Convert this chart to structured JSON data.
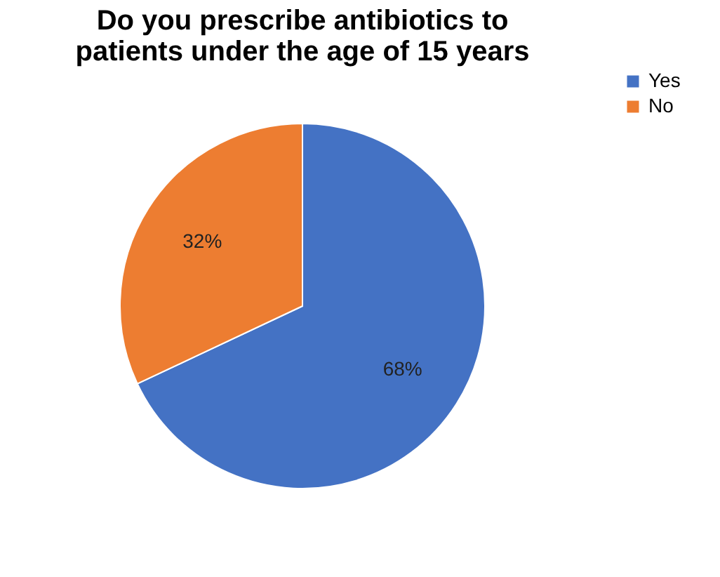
{
  "chart_data": {
    "type": "pie",
    "title": "Do you prescribe antibiotics to patients under the age of 15 years",
    "categories": [
      "Yes",
      "No"
    ],
    "values": [
      68,
      32
    ],
    "colors": [
      "#4472c4",
      "#ed7d31"
    ],
    "value_labels": [
      "68%",
      "32%"
    ],
    "legend": "right"
  }
}
